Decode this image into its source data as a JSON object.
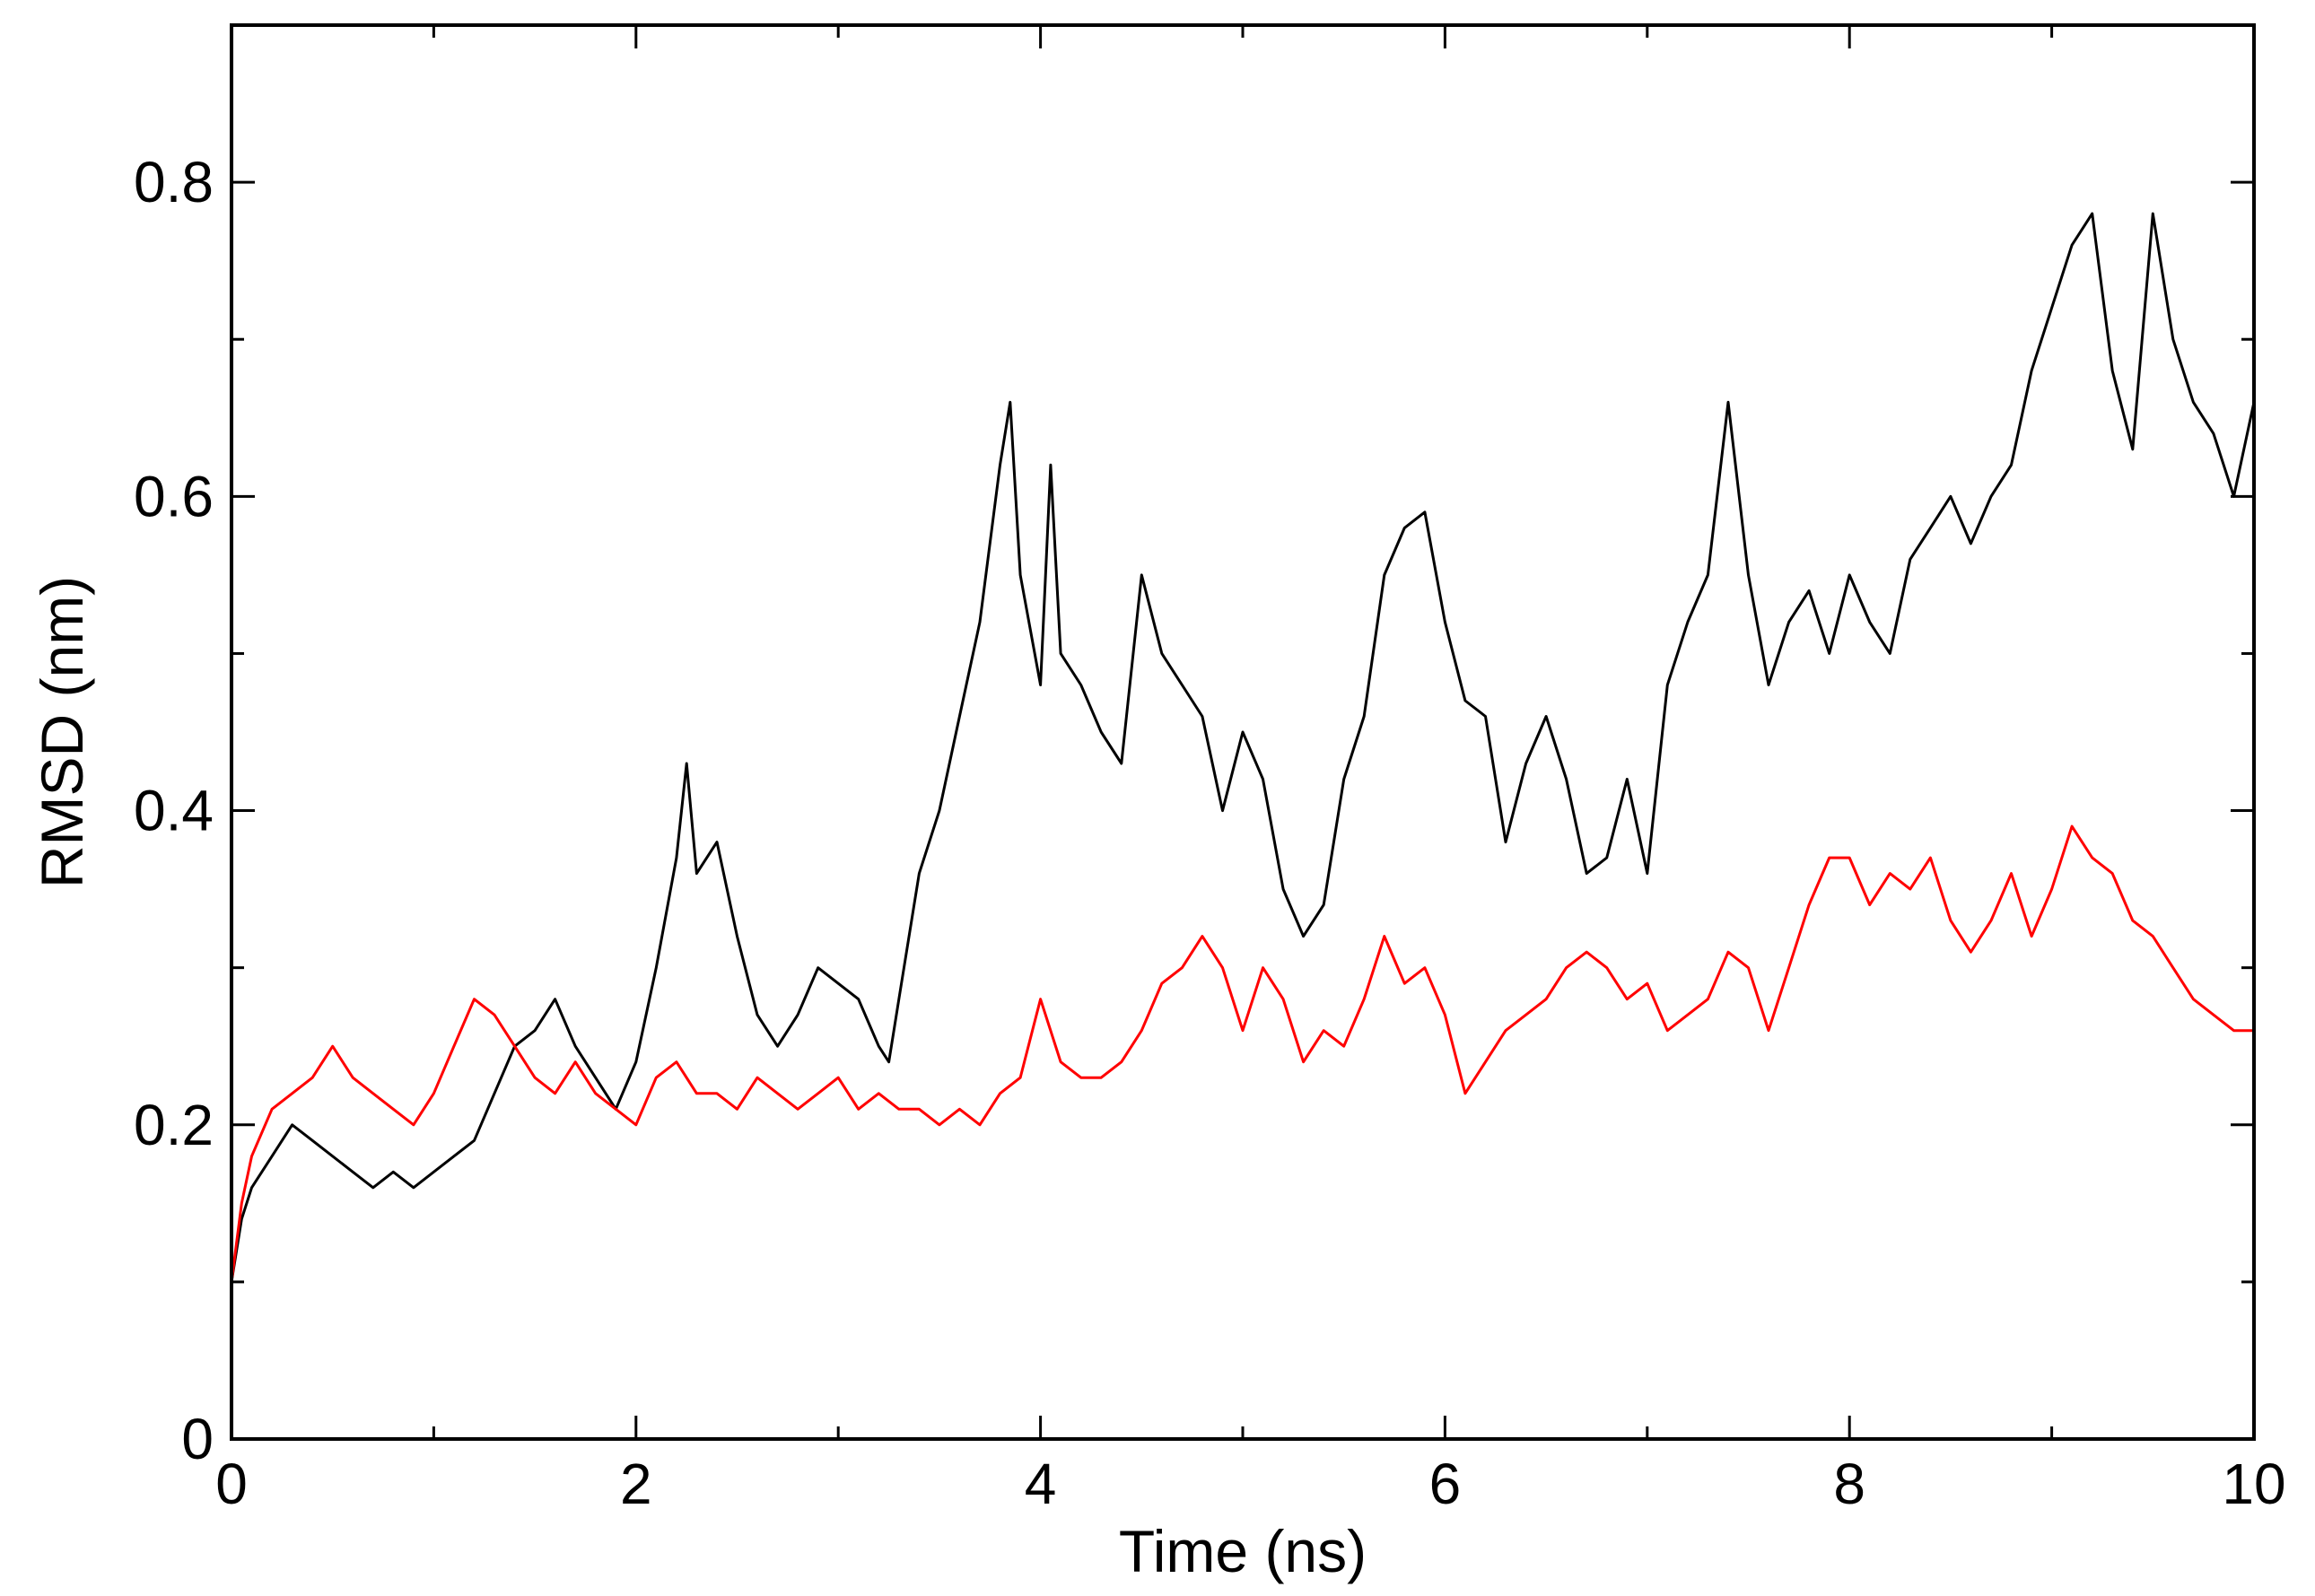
{
  "chart_data": {
    "type": "line",
    "title": "",
    "xlabel": "Time (ns)",
    "ylabel": "RMSD (nm)",
    "xlim": [
      0,
      10
    ],
    "ylim": [
      0,
      0.9
    ],
    "x_major_ticks": [
      0,
      2,
      4,
      6,
      8,
      10
    ],
    "x_minor_ticks": [
      1,
      3,
      5,
      7,
      9
    ],
    "x_tick_labels": [
      "0",
      "2",
      "4",
      "6",
      "8",
      "10"
    ],
    "y_major_ticks": [
      0,
      0.2,
      0.4,
      0.6,
      0.8
    ],
    "y_minor_ticks": [
      0.1,
      0.3,
      0.5,
      0.7
    ],
    "y_tick_labels": [
      "0",
      "0.2",
      "0.4",
      "0.6",
      "0.8"
    ],
    "grid": false,
    "legend": "none",
    "series": [
      {
        "color": "#000000",
        "x": [
          0,
          0.05,
          0.1,
          0.2,
          0.3,
          0.4,
          0.5,
          0.6,
          0.7,
          0.8,
          0.9,
          1.0,
          1.1,
          1.2,
          1.3,
          1.4,
          1.5,
          1.6,
          1.7,
          1.8,
          1.9,
          2.0,
          2.1,
          2.2,
          2.25,
          2.3,
          2.4,
          2.5,
          2.6,
          2.7,
          2.8,
          2.9,
          3.0,
          3.1,
          3.2,
          3.25,
          3.3,
          3.4,
          3.5,
          3.6,
          3.7,
          3.8,
          3.85,
          3.9,
          4.0,
          4.05,
          4.1,
          4.2,
          4.3,
          4.4,
          4.5,
          4.6,
          4.7,
          4.8,
          4.9,
          5.0,
          5.1,
          5.2,
          5.3,
          5.4,
          5.5,
          5.6,
          5.7,
          5.8,
          5.9,
          6.0,
          6.1,
          6.2,
          6.3,
          6.4,
          6.5,
          6.6,
          6.7,
          6.8,
          6.9,
          7.0,
          7.1,
          7.2,
          7.3,
          7.4,
          7.5,
          7.6,
          7.7,
          7.8,
          7.9,
          8.0,
          8.1,
          8.2,
          8.3,
          8.4,
          8.5,
          8.6,
          8.7,
          8.8,
          8.9,
          9.0,
          9.1,
          9.2,
          9.3,
          9.4,
          9.5,
          9.6,
          9.7,
          9.8,
          9.9,
          10.0
        ],
        "y": [
          0.1,
          0.14,
          0.16,
          0.18,
          0.2,
          0.19,
          0.18,
          0.17,
          0.16,
          0.17,
          0.16,
          0.17,
          0.18,
          0.19,
          0.22,
          0.25,
          0.26,
          0.28,
          0.25,
          0.23,
          0.21,
          0.24,
          0.3,
          0.37,
          0.43,
          0.36,
          0.38,
          0.32,
          0.27,
          0.25,
          0.27,
          0.3,
          0.29,
          0.28,
          0.25,
          0.24,
          0.28,
          0.36,
          0.4,
          0.46,
          0.52,
          0.62,
          0.66,
          0.55,
          0.48,
          0.62,
          0.5,
          0.48,
          0.45,
          0.43,
          0.55,
          0.5,
          0.48,
          0.46,
          0.4,
          0.45,
          0.42,
          0.35,
          0.32,
          0.34,
          0.42,
          0.46,
          0.55,
          0.58,
          0.59,
          0.52,
          0.47,
          0.46,
          0.38,
          0.43,
          0.46,
          0.42,
          0.36,
          0.37,
          0.42,
          0.36,
          0.48,
          0.52,
          0.55,
          0.66,
          0.55,
          0.48,
          0.52,
          0.54,
          0.5,
          0.55,
          0.52,
          0.5,
          0.56,
          0.58,
          0.6,
          0.57,
          0.6,
          0.62,
          0.68,
          0.72,
          0.76,
          0.78,
          0.68,
          0.63,
          0.78,
          0.7,
          0.66,
          0.64,
          0.6,
          0.66
        ]
      },
      {
        "color": "#ff0000",
        "x": [
          0,
          0.05,
          0.1,
          0.2,
          0.3,
          0.4,
          0.5,
          0.6,
          0.7,
          0.8,
          0.9,
          1.0,
          1.1,
          1.2,
          1.3,
          1.4,
          1.5,
          1.6,
          1.7,
          1.8,
          1.9,
          2.0,
          2.1,
          2.2,
          2.3,
          2.4,
          2.5,
          2.6,
          2.7,
          2.8,
          2.9,
          3.0,
          3.1,
          3.2,
          3.3,
          3.4,
          3.5,
          3.6,
          3.7,
          3.8,
          3.9,
          4.0,
          4.1,
          4.2,
          4.3,
          4.4,
          4.5,
          4.6,
          4.7,
          4.8,
          4.9,
          5.0,
          5.1,
          5.2,
          5.3,
          5.4,
          5.5,
          5.6,
          5.7,
          5.8,
          5.9,
          6.0,
          6.1,
          6.2,
          6.3,
          6.4,
          6.5,
          6.6,
          6.7,
          6.8,
          6.9,
          7.0,
          7.1,
          7.2,
          7.3,
          7.4,
          7.5,
          7.6,
          7.7,
          7.8,
          7.9,
          8.0,
          8.1,
          8.2,
          8.3,
          8.4,
          8.5,
          8.6,
          8.7,
          8.8,
          8.9,
          9.0,
          9.1,
          9.2,
          9.3,
          9.4,
          9.5,
          9.6,
          9.7,
          9.8,
          9.9,
          10.0
        ],
        "y": [
          0.1,
          0.15,
          0.18,
          0.21,
          0.22,
          0.23,
          0.25,
          0.23,
          0.22,
          0.21,
          0.2,
          0.22,
          0.25,
          0.28,
          0.27,
          0.25,
          0.23,
          0.22,
          0.24,
          0.22,
          0.21,
          0.2,
          0.23,
          0.24,
          0.22,
          0.22,
          0.21,
          0.23,
          0.22,
          0.21,
          0.22,
          0.23,
          0.21,
          0.22,
          0.21,
          0.21,
          0.2,
          0.21,
          0.2,
          0.22,
          0.23,
          0.28,
          0.24,
          0.23,
          0.23,
          0.24,
          0.26,
          0.29,
          0.3,
          0.32,
          0.3,
          0.26,
          0.3,
          0.28,
          0.24,
          0.26,
          0.25,
          0.28,
          0.32,
          0.29,
          0.3,
          0.27,
          0.22,
          0.24,
          0.26,
          0.27,
          0.28,
          0.3,
          0.31,
          0.3,
          0.28,
          0.29,
          0.26,
          0.27,
          0.28,
          0.31,
          0.3,
          0.26,
          0.3,
          0.34,
          0.37,
          0.37,
          0.34,
          0.36,
          0.35,
          0.37,
          0.33,
          0.31,
          0.33,
          0.36,
          0.32,
          0.35,
          0.39,
          0.37,
          0.36,
          0.33,
          0.32,
          0.3,
          0.28,
          0.27,
          0.26,
          0.26
        ]
      }
    ]
  }
}
